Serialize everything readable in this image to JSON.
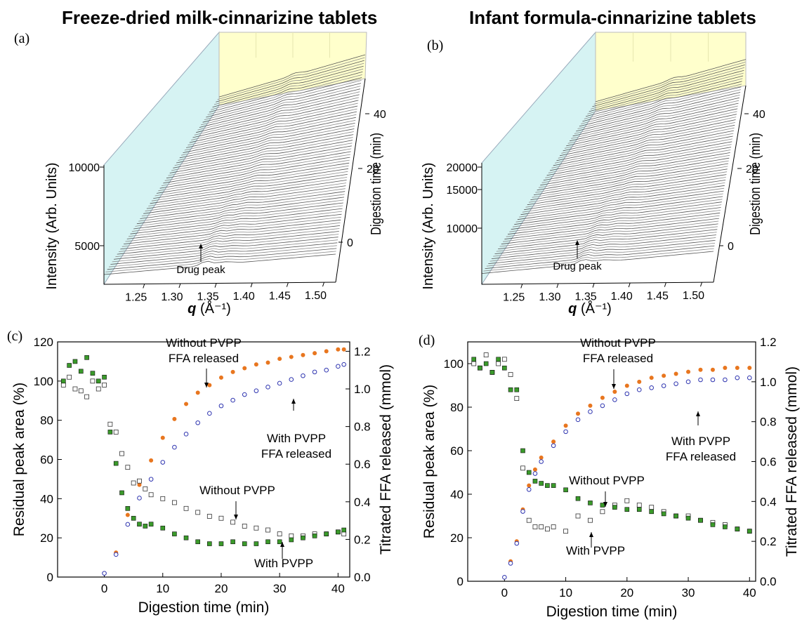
{
  "titles": {
    "a": "Freeze-dried milk-cinnarizine tablets",
    "b": "Infant formula-cinnarizine tablets"
  },
  "panel_labels": {
    "a": "(a)",
    "b": "(b)",
    "c": "(c)",
    "d": "(d)"
  },
  "colors": {
    "without_pvpp_ffa": "#e8761f",
    "with_pvpp_ffa": "#2f35b0",
    "with_pvpp_peak": "#3a9a2a",
    "without_pvpp_peak": "#333333",
    "back_wall": "#ffffcc",
    "side_wall": "#d6f3f3",
    "spectra": "#555555"
  },
  "chart_data": [
    {
      "type": "area",
      "id": "a",
      "title": "Freeze-dried milk-cinnarizine tablets",
      "xlabel_prefix": "q",
      "xlabel_unit": "(Å⁻¹)",
      "ylabel": "Intensity (Arb. Units)",
      "zlabel": "Digestion time (min)",
      "x_ticks": [
        "1.25",
        "1.30",
        "1.35",
        "1.40",
        "1.45",
        "1.50"
      ],
      "y_ticks": [
        "5000",
        "10000"
      ],
      "z_ticks": [
        "0",
        "20",
        "40"
      ],
      "annotation": "Drug peak",
      "xlim": [
        1.2,
        1.5
      ],
      "ylim": [
        3000,
        12000
      ],
      "zlim": [
        -5,
        45
      ]
    },
    {
      "type": "area",
      "id": "b",
      "title": "Infant formula-cinnarizine tablets",
      "xlabel_prefix": "q",
      "xlabel_unit": "(Å⁻¹)",
      "ylabel": "Intensity (Arb. Units)",
      "zlabel": "Digestion time (min)",
      "x_ticks": [
        "1.25",
        "1.30",
        "1.35",
        "1.40",
        "1.45",
        "1.50"
      ],
      "y_ticks": [
        "10000",
        "15000",
        "20000"
      ],
      "z_ticks": [
        "0",
        "20",
        "40"
      ],
      "annotation": "Drug peak",
      "xlim": [
        1.2,
        1.5
      ],
      "ylim": [
        5000,
        22000
      ],
      "zlim": [
        -5,
        45
      ]
    },
    {
      "type": "scatter",
      "id": "c",
      "xlabel": "Digestion time (min)",
      "ylabel": "Residual peak area (%)",
      "y2label": "Titrated FFA released (mmol)",
      "xlim": [
        -8,
        42
      ],
      "ylim": [
        0,
        120
      ],
      "y2lim": [
        0,
        1.25
      ],
      "x_ticks": [
        "0",
        "10",
        "20",
        "30",
        "40"
      ],
      "y_ticks": [
        "0",
        "20",
        "40",
        "60",
        "80",
        "100",
        "120"
      ],
      "y2_ticks": [
        "0.0",
        "0.2",
        "0.4",
        "0.6",
        "0.8",
        "1.0",
        "1.2"
      ],
      "annotations": {
        "ffa_without": [
          "Without PVPP",
          "FFA released"
        ],
        "ffa_with": [
          "With PVPP",
          "FFA released"
        ],
        "peak_without": "Without PVPP",
        "peak_with": "With PVPP"
      },
      "series": [
        {
          "key": "ffa_without",
          "axis": "right",
          "x": [
            0,
            2,
            4,
            6,
            8,
            10,
            12,
            14,
            16,
            18,
            20,
            22,
            24,
            26,
            28,
            30,
            32,
            34,
            36,
            38,
            40,
            41
          ],
          "y": [
            0.02,
            0.13,
            0.33,
            0.49,
            0.62,
            0.74,
            0.84,
            0.92,
            0.98,
            1.02,
            1.06,
            1.09,
            1.11,
            1.13,
            1.14,
            1.16,
            1.17,
            1.18,
            1.19,
            1.2,
            1.21,
            1.21
          ]
        },
        {
          "key": "ffa_with",
          "axis": "right",
          "x": [
            0,
            2,
            4,
            6,
            8,
            10,
            12,
            14,
            16,
            18,
            20,
            22,
            24,
            26,
            28,
            30,
            32,
            34,
            36,
            38,
            40,
            41
          ],
          "y": [
            0.02,
            0.12,
            0.28,
            0.42,
            0.52,
            0.61,
            0.69,
            0.76,
            0.82,
            0.87,
            0.91,
            0.94,
            0.97,
            0.99,
            1.01,
            1.03,
            1.05,
            1.07,
            1.09,
            1.1,
            1.12,
            1.13
          ]
        },
        {
          "key": "peak_without",
          "axis": "left",
          "x": [
            -7,
            -6,
            -5,
            -4,
            -3,
            -2,
            -1,
            0,
            1,
            2,
            3,
            4,
            5,
            6,
            7,
            8,
            10,
            12,
            14,
            16,
            18,
            20,
            22,
            24,
            26,
            28,
            30,
            32,
            34,
            36,
            38,
            40,
            41
          ],
          "y": [
            98,
            102,
            96,
            95,
            92,
            100,
            96,
            98,
            78,
            74,
            63,
            56,
            48,
            49,
            45,
            42,
            40,
            38,
            35,
            33,
            31,
            30,
            28,
            26,
            25,
            24,
            22,
            21,
            21,
            22,
            22,
            23,
            22
          ]
        },
        {
          "key": "peak_with",
          "axis": "left",
          "x": [
            -7,
            -6,
            -5,
            -4,
            -3,
            -2,
            -1,
            0,
            1,
            2,
            3,
            4,
            5,
            6,
            7,
            8,
            10,
            12,
            14,
            16,
            18,
            20,
            22,
            24,
            26,
            28,
            30,
            32,
            34,
            36,
            38,
            40,
            41
          ],
          "y": [
            100,
            108,
            110,
            105,
            112,
            104,
            100,
            102,
            74,
            58,
            43,
            35,
            30,
            27,
            26,
            27,
            25,
            22,
            20,
            18,
            17,
            17,
            18,
            17,
            17,
            18,
            18,
            19,
            20,
            21,
            22,
            23,
            24
          ]
        }
      ]
    },
    {
      "type": "scatter",
      "id": "d",
      "xlabel": "Digestion time (min)",
      "ylabel": "Residual peak area (%)",
      "y2label": "Titrated FFA released (mmol)",
      "xlim": [
        -6,
        41
      ],
      "ylim": [
        0,
        110
      ],
      "y2lim": [
        0,
        1.2
      ],
      "x_ticks": [
        "0",
        "10",
        "20",
        "30",
        "40"
      ],
      "y_ticks": [
        "0",
        "20",
        "40",
        "60",
        "80",
        "100"
      ],
      "y2_ticks": [
        "0.0",
        "0.2",
        "0.4",
        "0.6",
        "0.8",
        "1.0",
        "1.2"
      ],
      "annotations": {
        "ffa_without": [
          "Without PVPP",
          "FFA released"
        ],
        "ffa_with": [
          "With PVPP",
          "FFA released"
        ],
        "peak_without": "Without PVPP",
        "peak_with": "With PVPP"
      },
      "series": [
        {
          "key": "ffa_without",
          "axis": "right",
          "x": [
            0,
            1,
            2,
            3,
            4,
            5,
            6,
            8,
            10,
            12,
            14,
            16,
            18,
            20,
            22,
            24,
            26,
            28,
            30,
            32,
            34,
            36,
            38,
            40
          ],
          "y": [
            0.02,
            0.1,
            0.2,
            0.36,
            0.48,
            0.56,
            0.62,
            0.7,
            0.78,
            0.84,
            0.88,
            0.92,
            0.95,
            0.98,
            1.0,
            1.02,
            1.03,
            1.04,
            1.05,
            1.06,
            1.06,
            1.07,
            1.07,
            1.07
          ]
        },
        {
          "key": "ffa_with",
          "axis": "right",
          "x": [
            0,
            1,
            2,
            3,
            4,
            5,
            6,
            8,
            10,
            12,
            14,
            16,
            18,
            20,
            22,
            24,
            26,
            28,
            30,
            32,
            34,
            36,
            38,
            40
          ],
          "y": [
            0.02,
            0.09,
            0.19,
            0.35,
            0.46,
            0.54,
            0.6,
            0.68,
            0.75,
            0.81,
            0.85,
            0.88,
            0.91,
            0.94,
            0.96,
            0.97,
            0.98,
            0.99,
            1.0,
            1.01,
            1.01,
            1.01,
            1.02,
            1.02
          ]
        },
        {
          "key": "peak_without",
          "axis": "left",
          "x": [
            -5,
            -4,
            -3,
            -2,
            -1,
            0,
            1,
            2,
            3,
            4,
            5,
            6,
            7,
            8,
            10,
            12,
            14,
            16,
            18,
            20,
            22,
            24,
            26,
            28,
            30,
            32,
            34,
            36,
            38,
            40
          ],
          "y": [
            100,
            98,
            104,
            96,
            100,
            102,
            95,
            84,
            52,
            28,
            25,
            25,
            24,
            25,
            23,
            30,
            28,
            32,
            35,
            37,
            35,
            34,
            32,
            30,
            30,
            28,
            27,
            26,
            24,
            23
          ]
        },
        {
          "key": "peak_with",
          "axis": "left",
          "x": [
            -5,
            -4,
            -3,
            -2,
            -1,
            0,
            1,
            2,
            3,
            4,
            5,
            6,
            7,
            8,
            10,
            12,
            14,
            16,
            18,
            20,
            22,
            24,
            26,
            28,
            30,
            32,
            34,
            36,
            38,
            40
          ],
          "y": [
            102,
            98,
            100,
            96,
            102,
            98,
            88,
            88,
            60,
            50,
            46,
            45,
            44,
            44,
            42,
            38,
            36,
            35,
            34,
            33,
            33,
            32,
            31,
            30,
            29,
            28,
            26,
            25,
            24,
            23
          ]
        }
      ]
    }
  ]
}
